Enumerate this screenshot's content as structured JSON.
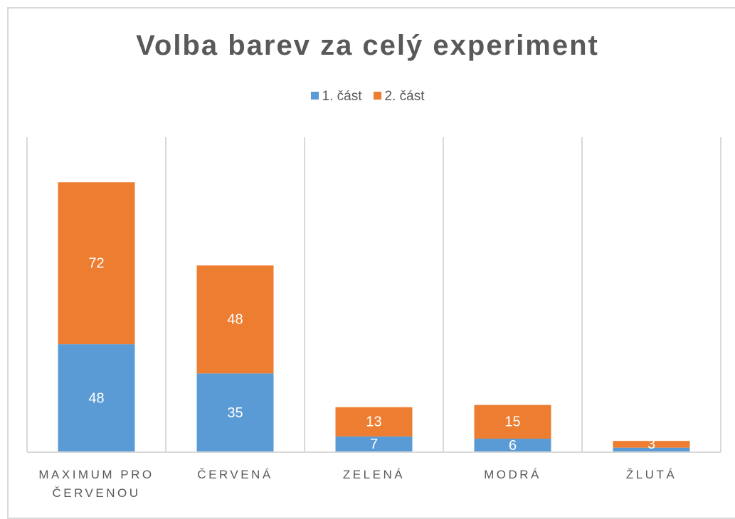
{
  "chart_data": {
    "type": "stacked_bar",
    "title": "Volba barev za celý experiment",
    "categories": [
      "MAXIMUM PRO ČERVENOU",
      "ČERVENÁ",
      "ZELENÁ",
      "MODRÁ",
      "ŽLUTÁ"
    ],
    "series": [
      {
        "name": "1. část",
        "color": "#5b9bd5",
        "values": [
          48,
          35,
          7,
          6,
          2
        ]
      },
      {
        "name": "2. část",
        "color": "#ed7d31",
        "values": [
          72,
          48,
          13,
          15,
          3
        ]
      }
    ],
    "ylim": [
      0,
      140
    ],
    "legend": "top"
  }
}
